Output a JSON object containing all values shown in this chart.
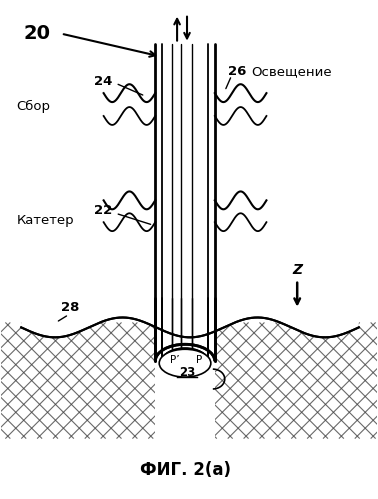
{
  "title": "ФИГ. 2(а)",
  "bg_color": "#ffffff",
  "line_color": "#000000",
  "label_20": "20",
  "label_22": "22",
  "label_23": "23",
  "label_24": "24",
  "label_26": "26",
  "label_28": "28",
  "label_sbor": "Сбор",
  "label_kateter": "Катетер",
  "label_osveschenie": "Освещение",
  "label_z": "Z",
  "label_p": "P",
  "label_pprime": "P’",
  "figsize": [
    3.78,
    4.99
  ],
  "dpi": 100
}
